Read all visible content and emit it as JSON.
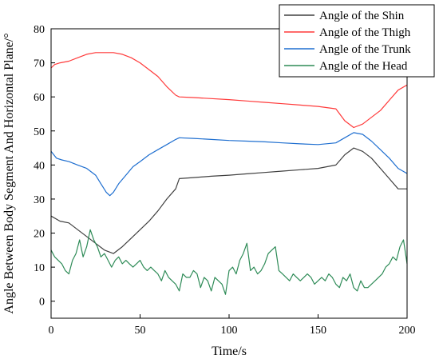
{
  "chart_data": {
    "type": "line",
    "xlabel": "Time/s",
    "ylabel": "Angle Between Body Segment And Horizontal Plane/°",
    "xlim": [
      0,
      200
    ],
    "ylim": [
      -5,
      80
    ],
    "xticks": [
      0,
      50,
      100,
      150,
      200
    ],
    "yticks": [
      0,
      10,
      20,
      30,
      40,
      50,
      60,
      70,
      80
    ],
    "grid": false,
    "legend_position": "top-right",
    "series": [
      {
        "name": "Angle of the Shin",
        "color": "#404040",
        "x": [
          0,
          5,
          10,
          15,
          20,
          25,
          30,
          35,
          40,
          45,
          50,
          55,
          60,
          65,
          70,
          72,
          80,
          90,
          100,
          110,
          120,
          130,
          140,
          150,
          160,
          165,
          170,
          175,
          180,
          185,
          190,
          195,
          200
        ],
        "y": [
          25,
          23.5,
          23,
          21,
          19,
          17,
          15,
          14,
          16,
          18.5,
          21,
          23.5,
          26.5,
          30,
          33,
          36,
          36.3,
          36.7,
          37,
          37.4,
          37.8,
          38.2,
          38.6,
          39,
          40,
          43,
          45,
          44,
          42,
          39,
          36,
          33,
          33
        ]
      },
      {
        "name": "Angle of the Thigh",
        "color": "#ff3a3a",
        "x": [
          0,
          2,
          5,
          10,
          15,
          20,
          25,
          30,
          35,
          40,
          45,
          50,
          55,
          60,
          65,
          70,
          72,
          80,
          90,
          100,
          110,
          120,
          130,
          140,
          150,
          160,
          165,
          170,
          175,
          180,
          185,
          190,
          195,
          200
        ],
        "y": [
          68.5,
          69.5,
          70,
          70.5,
          71.5,
          72.5,
          73,
          73,
          73,
          72.5,
          71.5,
          70,
          68,
          66,
          63,
          60.5,
          60,
          59.8,
          59.5,
          59.2,
          58.8,
          58.4,
          58,
          57.6,
          57.2,
          56.5,
          53,
          51,
          52,
          54,
          56,
          59,
          62,
          63.5
        ]
      },
      {
        "name": "Angle of the Trunk",
        "color": "#1f6fd0",
        "x": [
          0,
          3,
          6,
          10,
          15,
          20,
          25,
          28,
          31,
          33,
          35,
          38,
          42,
          46,
          50,
          55,
          60,
          65,
          70,
          72,
          80,
          90,
          100,
          110,
          120,
          130,
          140,
          150,
          160,
          165,
          170,
          175,
          180,
          185,
          190,
          195,
          200
        ],
        "y": [
          44,
          42,
          41.5,
          41,
          40,
          39,
          37,
          34.5,
          32,
          31,
          32,
          34.5,
          37,
          39.5,
          41,
          43,
          44.5,
          46,
          47.5,
          48,
          47.8,
          47.5,
          47.2,
          47,
          46.8,
          46.5,
          46.2,
          46,
          46.5,
          48,
          49.5,
          49,
          47,
          44.5,
          42,
          39,
          37.5
        ]
      },
      {
        "name": "Angle of the Head",
        "color": "#2e8b57",
        "x": [
          0,
          2,
          4,
          6,
          8,
          10,
          12,
          14,
          16,
          18,
          20,
          22,
          24,
          26,
          28,
          30,
          32,
          34,
          36,
          38,
          40,
          42,
          44,
          46,
          48,
          50,
          52,
          54,
          56,
          58,
          60,
          62,
          64,
          66,
          68,
          70,
          72,
          74,
          76,
          78,
          80,
          82,
          84,
          86,
          88,
          90,
          92,
          94,
          96,
          98,
          100,
          102,
          104,
          106,
          108,
          110,
          112,
          114,
          116,
          118,
          120,
          122,
          124,
          126,
          128,
          130,
          132,
          134,
          136,
          138,
          140,
          142,
          144,
          146,
          148,
          150,
          152,
          154,
          156,
          158,
          160,
          162,
          164,
          166,
          168,
          170,
          172,
          174,
          176,
          178,
          180,
          182,
          184,
          186,
          188,
          190,
          192,
          194,
          196,
          198,
          200
        ],
        "y": [
          15,
          13,
          12,
          11,
          9,
          8,
          12,
          14,
          18,
          13,
          16,
          21,
          18,
          16,
          13,
          14,
          12,
          10,
          12,
          13,
          11,
          12,
          11,
          10,
          11,
          12,
          10,
          9,
          10,
          9,
          8,
          6,
          9,
          7,
          6,
          5,
          3,
          8,
          7,
          7,
          9,
          8,
          4,
          7,
          6,
          3,
          7,
          6,
          5,
          2,
          9,
          10,
          8,
          12,
          14,
          17,
          9,
          10,
          8,
          9,
          11,
          14,
          15,
          16,
          9,
          8,
          7,
          6,
          8,
          7,
          6,
          7,
          8,
          7,
          5,
          6,
          7,
          6,
          8,
          7,
          5,
          4,
          7,
          6,
          8,
          4,
          3,
          6,
          4,
          4,
          5,
          6,
          7,
          8,
          10,
          11,
          13,
          12,
          16,
          18,
          11
        ]
      }
    ]
  }
}
